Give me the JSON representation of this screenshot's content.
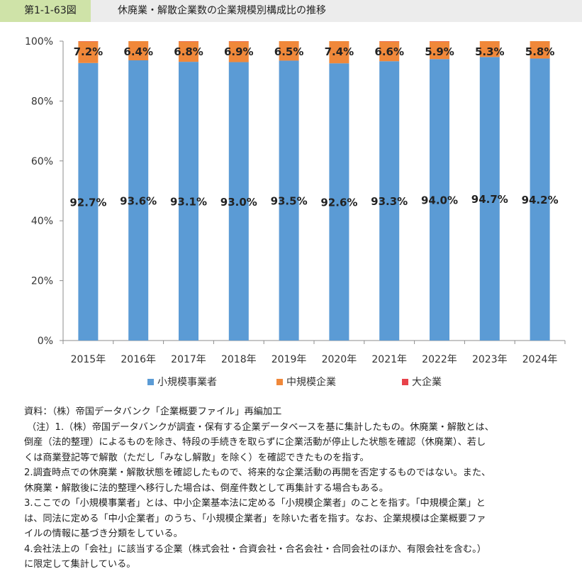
{
  "header": {
    "figure_label": "第1-1-63図",
    "figure_title": "休廃業・解散企業数の企業規模別構成比の推移"
  },
  "chart_data": {
    "type": "bar",
    "stacked": true,
    "categories": [
      "2015年",
      "2016年",
      "2017年",
      "2018年",
      "2019年",
      "2020年",
      "2021年",
      "2022年",
      "2023年",
      "2024年"
    ],
    "series": [
      {
        "name": "小規模事業者",
        "values": [
          92.7,
          93.6,
          93.1,
          93.0,
          93.5,
          92.6,
          93.3,
          94.0,
          94.7,
          94.2
        ],
        "labels": [
          "92.7%",
          "93.6%",
          "93.1%",
          "93.0%",
          "93.5%",
          "92.6%",
          "93.3%",
          "94.0%",
          "94.7%",
          "94.2%"
        ],
        "color": "#5b9bd5"
      },
      {
        "name": "中規模企業",
        "values": [
          7.2,
          6.4,
          6.8,
          6.9,
          6.5,
          7.4,
          6.6,
          5.9,
          5.3,
          5.8
        ],
        "labels": [
          "7.2%",
          "6.4%",
          "6.8%",
          "6.9%",
          "6.5%",
          "7.4%",
          "6.6%",
          "5.9%",
          "5.3%",
          "5.8%"
        ],
        "color": "#f0883a"
      },
      {
        "name": "大企業",
        "values": [
          0.1,
          0.0,
          0.1,
          0.1,
          0.0,
          0.0,
          0.1,
          0.1,
          0.0,
          0.0
        ],
        "color": "#e8424a"
      }
    ],
    "ylim": [
      0,
      100
    ],
    "yticks": [
      0,
      20,
      40,
      60,
      80,
      100
    ],
    "ytick_labels": [
      "0%",
      "20%",
      "40%",
      "60%",
      "80%",
      "100%"
    ],
    "legend_position": "bottom",
    "grid": false
  },
  "notes": {
    "source": "資料：（株）帝国データバンク「企業概要ファイル」再編加工",
    "lines": [
      "（注）1.（株）帝国データバンクが調査・保有する企業データベースを基に集計したもの。休廃業・解散とは、",
      "倒産（法的整理）によるものを除き、特段の手続きを取らずに企業活動が停止した状態を確認（休廃業）、若し",
      "くは商業登記等で解散（ただし「みなし解散」を除く）を確認できたものを指す。",
      "2.調査時点での休廃業・解散状態を確認したもので、将来的な企業活動の再開を否定するものではない。また、",
      "休廃業・解散後に法的整理へ移行した場合は、倒産件数として再集計する場合もある。",
      "3.ここでの「小規模事業者」とは、中小企業基本法に定める「小規模企業者」のことを指す。「中規模企業」と",
      "は、同法に定める「中小企業者」のうち、「小規模企業者」を除いた者を指す。なお、企業規模は企業概要ファ",
      "イルの情報に基づき分類をしている。",
      "4.会社法上の「会社」に該当する企業（株式会社・合資会社・合名会社・合同会社のほか、有限会社を含む。）",
      "に限定して集計している。"
    ]
  }
}
